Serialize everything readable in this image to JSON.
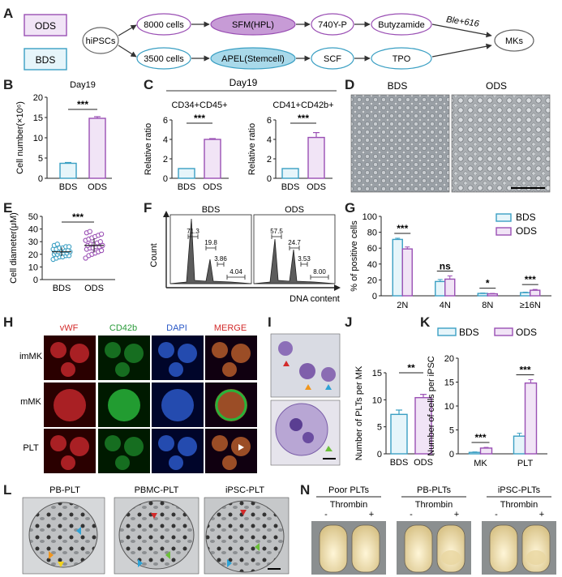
{
  "panels": {
    "A": "A",
    "B": "B",
    "C": "C",
    "D": "D",
    "E": "E",
    "F": "F",
    "G": "G",
    "H": "H",
    "I": "I",
    "J": "J",
    "K": "K",
    "L": "L",
    "N": "N"
  },
  "colors": {
    "bds": "#3a9fc3",
    "bds_fill": "#e6f5fa",
    "ods": "#9a4fb4",
    "ods_fill": "#f1e4f6",
    "ods_node_fill": "#c79bd6"
  },
  "schematic": {
    "ods": "ODS",
    "bds": "BDS",
    "hipscs": "hiPSCs",
    "ods_path": [
      "8000 cells",
      "SFM(HPL)",
      "740Y-P",
      "Butyzamide"
    ],
    "bds_path": [
      "3500 cells",
      "APEL(Stemcell)",
      "SCF",
      "TPO"
    ],
    "arrow_label": "Ble+616",
    "end": "MKs"
  },
  "chart_data": [
    {
      "panel": "B",
      "type": "bar",
      "title": "Day19",
      "ylabel": "Cell number(×10⁶)",
      "categories": [
        "BDS",
        "ODS"
      ],
      "values": [
        3.7,
        14.8
      ],
      "errors": [
        0.2,
        0.4
      ],
      "ylim": [
        0,
        20
      ],
      "yticks": [
        0,
        5,
        10,
        15,
        20
      ],
      "significance": "***"
    },
    {
      "panel": "C",
      "type": "bar",
      "title": "Day19",
      "subtitle": "CD34+CD45+",
      "ylabel": "Relative ratio",
      "categories": [
        "BDS",
        "ODS"
      ],
      "values": [
        1.0,
        4.0
      ],
      "errors": [
        0,
        0.08
      ],
      "ylim": [
        0,
        6
      ],
      "yticks": [
        0,
        2,
        4,
        6
      ],
      "significance": "***"
    },
    {
      "panel": "C",
      "type": "bar",
      "subtitle": "CD41+CD42b+",
      "ylabel": "Relative ratio",
      "categories": [
        "BDS",
        "ODS"
      ],
      "values": [
        1.0,
        4.2
      ],
      "errors": [
        0,
        0.5
      ],
      "ylim": [
        0,
        6
      ],
      "yticks": [
        0,
        2,
        4,
        6
      ],
      "significance": "***"
    },
    {
      "panel": "E",
      "type": "scatter",
      "ylabel": "Cell diameter(μM)",
      "categories": [
        "BDS",
        "ODS"
      ],
      "values": [
        22,
        27
      ],
      "errors": [
        3.5,
        5.5
      ],
      "ylim": [
        0,
        50
      ],
      "yticks": [
        0,
        10,
        20,
        30,
        40,
        50
      ],
      "significance": "***",
      "points": {
        "BDS": [
          16,
          17,
          18,
          18,
          19,
          19,
          20,
          20,
          21,
          21,
          21,
          22,
          22,
          22,
          23,
          23,
          23,
          24,
          24,
          25,
          25,
          26,
          26,
          27,
          28
        ],
        "ODS": [
          17,
          19,
          20,
          21,
          22,
          23,
          24,
          25,
          25,
          26,
          26,
          27,
          27,
          28,
          28,
          29,
          30,
          31,
          32,
          33,
          34,
          35,
          36,
          37,
          38
        ]
      }
    },
    {
      "panel": "F",
      "type": "area",
      "ylabel": "Count",
      "xlabel": "DNA content",
      "series": [
        {
          "name": "BDS",
          "gates": [
            "71.3",
            "19.8",
            "3.86",
            "4.04"
          ]
        },
        {
          "name": "ODS",
          "gates": [
            "57.5",
            "24.7",
            "3.53",
            "8.00"
          ]
        }
      ]
    },
    {
      "panel": "G",
      "type": "bar",
      "ylabel": "% of positive cells",
      "categories": [
        "2N",
        "4N",
        "8N",
        "≥16N"
      ],
      "series": [
        {
          "name": "BDS",
          "values": [
            71,
            18,
            3,
            4
          ],
          "errors": [
            1.5,
            2.5,
            0.5,
            0.6
          ]
        },
        {
          "name": "ODS",
          "values": [
            59,
            21,
            2.5,
            7
          ],
          "errors": [
            2.5,
            4,
            0.5,
            1
          ]
        }
      ],
      "ylim": [
        0,
        100
      ],
      "yticks": [
        0,
        20,
        40,
        60,
        80,
        100
      ],
      "legend": "top-right",
      "significance": [
        "***",
        "ns",
        "*",
        "***"
      ]
    },
    {
      "panel": "J",
      "type": "bar",
      "ylabel": "Number of PLTs per MK",
      "categories": [
        "BDS",
        "ODS"
      ],
      "values": [
        7.3,
        10.4
      ],
      "errors": [
        0.8,
        0.6
      ],
      "ylim": [
        0,
        15
      ],
      "yticks": [
        0,
        5,
        10,
        15
      ],
      "significance": "**"
    },
    {
      "panel": "K",
      "type": "bar",
      "ylabel": "Number of cells per iPSC",
      "categories": [
        "MK",
        "PLT"
      ],
      "series": [
        {
          "name": "BDS",
          "values": [
            0.3,
            3.7
          ],
          "errors": [
            0.1,
            0.6
          ]
        },
        {
          "name": "ODS",
          "values": [
            1.2,
            14.8
          ],
          "errors": [
            0.15,
            0.7
          ]
        }
      ],
      "ylim": [
        0,
        20
      ],
      "yticks": [
        0,
        5,
        10,
        15,
        20
      ],
      "legend": "top",
      "significance": [
        "***",
        "***"
      ]
    }
  ],
  "photos": {
    "D": {
      "labels": [
        "BDS",
        "ODS"
      ]
    },
    "H": {
      "columns": [
        "vWF",
        "CD42b",
        "DAPI",
        "MERGE"
      ],
      "rows": [
        "imMK",
        "mMK",
        "PLT"
      ]
    },
    "L": {
      "labels": [
        "PB-PLT",
        "PBMC-PLT",
        "iPSC-PLT"
      ]
    },
    "N": {
      "labels": [
        "Poor PLTs",
        "PB-PLTs",
        "iPSC-PLTs"
      ],
      "thrombin": "Thrombin",
      "minus": "-",
      "plus": "+"
    }
  }
}
